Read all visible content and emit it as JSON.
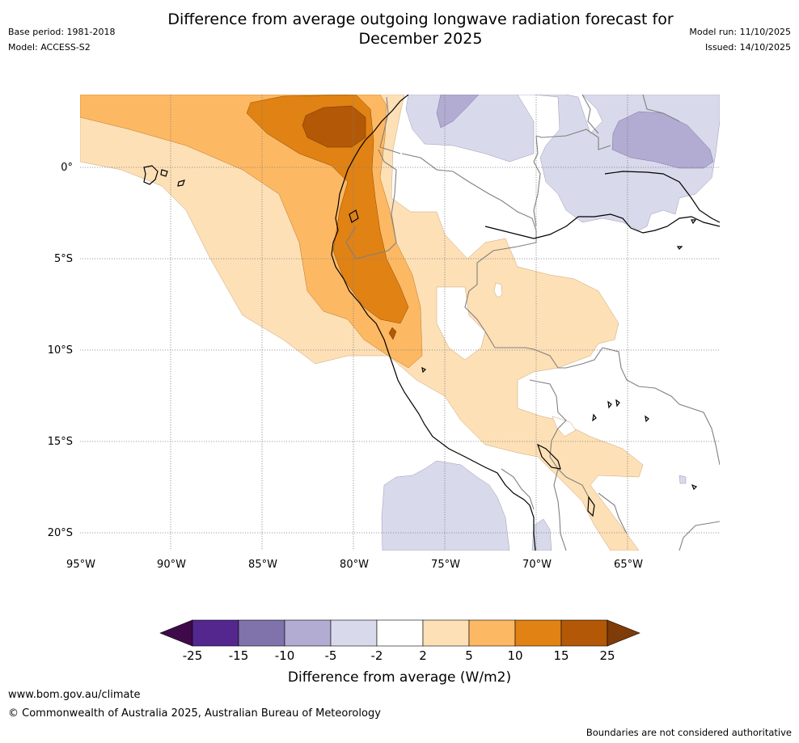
{
  "header": {
    "title_line1": "Difference from average outgoing longwave radiation forecast for",
    "title_line2": "December 2025",
    "base_period": "Base period: 1981-2018",
    "model": "Model: ACCESS-S2",
    "model_run": "Model run: 11/10/2025",
    "issued": "Issued: 14/10/2025"
  },
  "map": {
    "lat_labels": [
      "0°",
      "5°S",
      "10°S",
      "15°S",
      "20°S"
    ],
    "lon_labels": [
      "95°W",
      "90°W",
      "85°W",
      "80°W",
      "75°W",
      "70°W",
      "65°W"
    ],
    "lon_range": [
      -95,
      -60
    ],
    "lat_range": [
      -21,
      4
    ]
  },
  "legend": {
    "title": "Difference from average (W/m2)",
    "ticks": [
      "-25",
      "-15",
      "-10",
      "-5",
      "-2",
      "2",
      "5",
      "10",
      "15",
      "25"
    ],
    "colors": [
      "#3f0a4a",
      "#54278f",
      "#8073ac",
      "#b2abd2",
      "#d8daeb",
      "#ffffff",
      "#fee0b6",
      "#fdb863",
      "#e08214",
      "#b35806",
      "#7f3b08"
    ]
  },
  "footer": {
    "website": "www.bom.gov.au/climate",
    "copyright": "© Commonwealth of Australia 2025, Australian Bureau of Meteorology",
    "disclaimer": "Boundaries are not considered authoritative"
  }
}
